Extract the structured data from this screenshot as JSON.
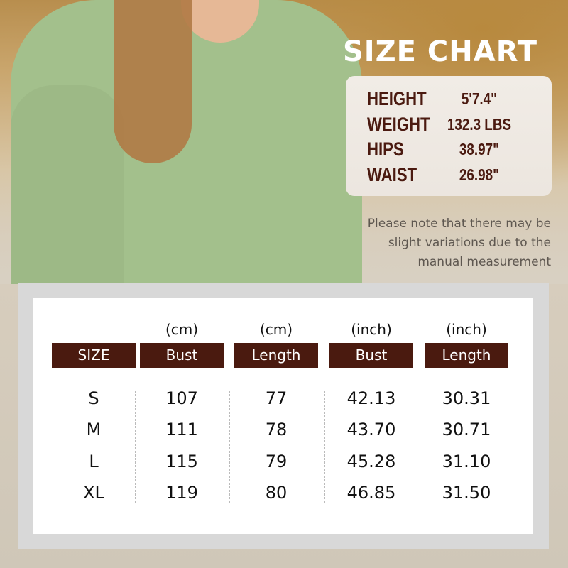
{
  "title": "SIZE CHART",
  "model": [
    {
      "label": "HEIGHT",
      "value": "5'7.4\""
    },
    {
      "label": "WEIGHT",
      "value": "132.3 LBS"
    },
    {
      "label": "HIPS",
      "value": "38.97\""
    },
    {
      "label": "WAIST",
      "value": "26.98\""
    }
  ],
  "note": "Please note that there may be slight variations due to the manual measurement",
  "table": {
    "units": [
      "",
      "(cm)",
      "(cm)",
      "(inch)",
      "(inch)"
    ],
    "headers": [
      "SIZE",
      "Bust",
      "Length",
      "Bust",
      "Length"
    ],
    "rows": [
      [
        "S",
        "107",
        "77",
        "42.13",
        "30.31"
      ],
      [
        "M",
        "111",
        "78",
        "43.70",
        "30.71"
      ],
      [
        "L",
        "115",
        "79",
        "45.28",
        "31.10"
      ],
      [
        "XL",
        "119",
        "80",
        "46.85",
        "31.50"
      ]
    ]
  },
  "colors": {
    "header_bg": "#4a1a0f",
    "label_text": "#4b1a10"
  }
}
